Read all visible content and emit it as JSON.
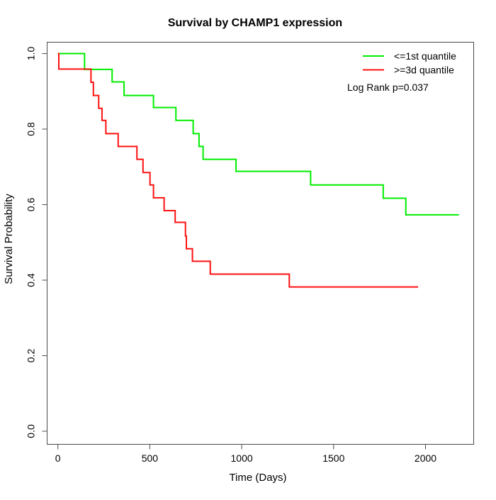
{
  "figure": {
    "background_color": "#ffffff",
    "frame_color": "#4a4a4a",
    "text_color": "#000000"
  },
  "chart_data": {
    "type": "line",
    "subtype": "kaplan-meier-step",
    "title": "Survival by CHAMP1 expression",
    "xlabel": "Time (Days)",
    "ylabel": "Survival Probability",
    "xlim": [
      0,
      2240
    ],
    "ylim": [
      0,
      1.03
    ],
    "grid": false,
    "legend_position": "topright",
    "annotation": "Log Rank p=0.037",
    "x_ticks": [
      {
        "value": 0,
        "label": "0"
      },
      {
        "value": 500,
        "label": "500"
      },
      {
        "value": 1000,
        "label": "1000"
      },
      {
        "value": 1500,
        "label": "1500"
      },
      {
        "value": 2000,
        "label": "2000"
      }
    ],
    "y_ticks": [
      {
        "value": 0.0,
        "label": "0.0"
      },
      {
        "value": 0.2,
        "label": "0.2"
      },
      {
        "value": 0.4,
        "label": "0.4"
      },
      {
        "value": 0.6,
        "label": "0.6"
      },
      {
        "value": 0.8,
        "label": "0.8"
      },
      {
        "value": 1.0,
        "label": "1.0"
      }
    ],
    "series": [
      {
        "name": "<=1st quantile",
        "color": "#00ee00",
        "end_time": 2182,
        "steps": [
          [
            0,
            1.0
          ],
          [
            145,
            0.958
          ],
          [
            295,
            0.925
          ],
          [
            360,
            0.889
          ],
          [
            520,
            0.857
          ],
          [
            642,
            0.823
          ],
          [
            736,
            0.788
          ],
          [
            768,
            0.754
          ],
          [
            790,
            0.72
          ],
          [
            969,
            0.688
          ],
          [
            1375,
            0.652
          ],
          [
            1770,
            0.617
          ],
          [
            1893,
            0.573
          ]
        ]
      },
      {
        "name": ">=3d quantile",
        "color": "#ff1111",
        "end_time": 1960,
        "steps": [
          [
            0,
            1.0
          ],
          [
            5,
            0.959
          ],
          [
            180,
            0.924
          ],
          [
            193,
            0.889
          ],
          [
            222,
            0.855
          ],
          [
            240,
            0.823
          ],
          [
            261,
            0.788
          ],
          [
            328,
            0.754
          ],
          [
            430,
            0.72
          ],
          [
            463,
            0.685
          ],
          [
            501,
            0.652
          ],
          [
            520,
            0.618
          ],
          [
            578,
            0.584
          ],
          [
            638,
            0.553
          ],
          [
            694,
            0.517
          ],
          [
            699,
            0.483
          ],
          [
            732,
            0.45
          ],
          [
            829,
            0.416
          ],
          [
            1259,
            0.382
          ]
        ]
      }
    ]
  }
}
